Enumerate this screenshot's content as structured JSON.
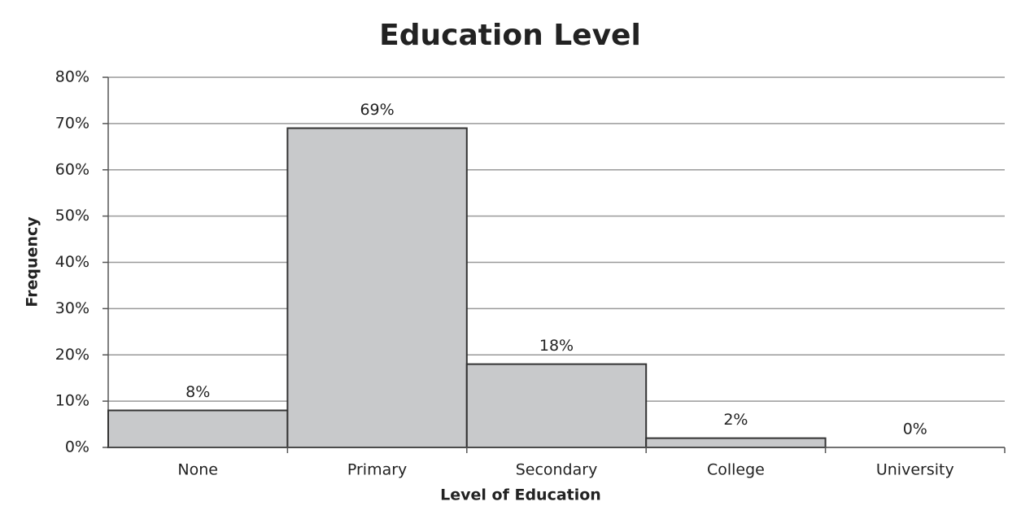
{
  "chart_data": {
    "type": "bar",
    "title": "Education Level",
    "x_label": "Level of Education",
    "y_label": "Frequency",
    "categories": [
      "None",
      "Primary",
      "Secondary",
      "College",
      "University"
    ],
    "values": [
      8,
      69,
      18,
      2,
      0
    ],
    "value_labels": [
      "8%",
      "69%",
      "18%",
      "2%",
      "0%"
    ],
    "color": "#c8c9cb",
    "ylim": [
      0,
      80
    ],
    "yticks": [
      {
        "value": 0,
        "label": "0%"
      },
      {
        "value": 10,
        "label": "10%"
      },
      {
        "value": 20,
        "label": "20%"
      },
      {
        "value": 30,
        "label": "30%"
      },
      {
        "value": 40,
        "label": "40%"
      },
      {
        "value": 50,
        "label": "50%"
      },
      {
        "value": 60,
        "label": "60%"
      },
      {
        "value": 70,
        "label": "70%"
      },
      {
        "value": 80,
        "label": "80%"
      }
    ],
    "grid": true
  }
}
